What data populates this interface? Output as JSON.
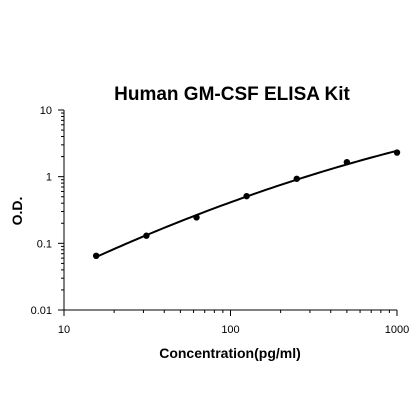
{
  "chart_data": {
    "type": "scatter",
    "title": "Human GM-CSF ELISA Kit",
    "xlabel": "Concentration(pg/ml)",
    "ylabel": "O.D.",
    "x_scale": "log",
    "y_scale": "log",
    "xlim": [
      10,
      1000
    ],
    "ylim": [
      0.01,
      10
    ],
    "x_ticks": [
      "10",
      "100",
      "1000"
    ],
    "y_ticks": [
      "0.01",
      "0.1",
      "1",
      "10"
    ],
    "grid": false,
    "legend": "none",
    "series": [
      {
        "x": [
          15.6,
          31.25,
          62.5,
          125,
          250,
          500,
          1000
        ],
        "y": [
          0.065,
          0.13,
          0.245,
          0.51,
          0.93,
          1.65,
          2.3
        ],
        "fit": "smooth curve"
      }
    ]
  },
  "colors": {
    "marks": "#000000",
    "axes": "#000000",
    "background": "#ffffff"
  }
}
